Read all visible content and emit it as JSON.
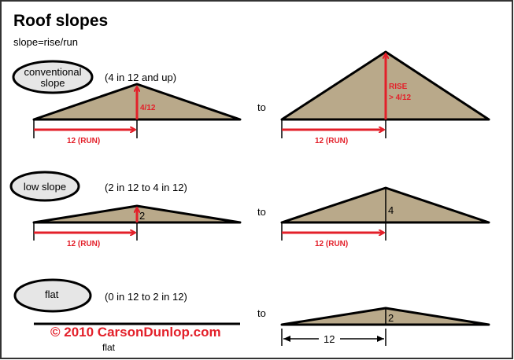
{
  "title": "Roof slopes",
  "formula": "slope=rise/run",
  "connector": "to",
  "colors": {
    "roof_fill": "#b9a98a",
    "accent_red": "#e3202a",
    "oval_fill": "#e6e6e6"
  },
  "rows": [
    {
      "label_line1": "conventional",
      "label_line2": "slope",
      "range": "(4 in 12 and up)",
      "left_rise": "4/12",
      "left_run": "12 (RUN)",
      "right_rise_line1": "RISE",
      "right_rise_line2": "> 4/12",
      "right_run": "12 (RUN)"
    },
    {
      "label_line1": "low slope",
      "range": "(2 in 12 to 4 in 12)",
      "left_rise": "2",
      "left_run": "12 (RUN)",
      "right_rise": "4",
      "right_run": "12 (RUN)"
    },
    {
      "label_line1": "flat",
      "range": "(0 in 12 to 2 in 12)",
      "left_caption": "flat",
      "right_rise": "2",
      "right_run": "12"
    }
  ],
  "copyright": "© 2010 CarsonDunlop.com"
}
